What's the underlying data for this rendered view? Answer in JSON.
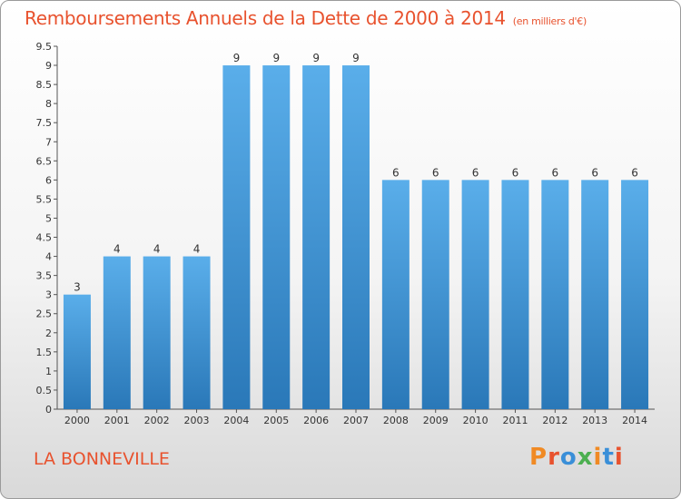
{
  "header": {
    "title": "Remboursements Annuels de la Dette de 2000 à 2014",
    "unit": "(en milliers d'€)"
  },
  "footer": {
    "commune": "LA BONNEVILLE",
    "logo": "Proxiti"
  },
  "colors": {
    "title": "#e8522e",
    "bar_top": "#5aaeea",
    "bar_bottom": "#2a78b8",
    "axis": "#555555",
    "logo_letters": [
      "#f08a24",
      "#e8522e",
      "#3a8fd8",
      "#4caf50",
      "#f08a24",
      "#3a8fd8",
      "#e8522e"
    ]
  },
  "chart_data": {
    "type": "bar",
    "categories": [
      "2000",
      "2001",
      "2002",
      "2003",
      "2004",
      "2005",
      "2006",
      "2007",
      "2008",
      "2009",
      "2010",
      "2011",
      "2012",
      "2013",
      "2014"
    ],
    "values": [
      3,
      4,
      4,
      4,
      9,
      9,
      9,
      9,
      6,
      6,
      6,
      6,
      6,
      6,
      6
    ],
    "data_labels": [
      "3",
      "4",
      "4",
      "4",
      "9",
      "9",
      "9",
      "9",
      "6",
      "6",
      "6",
      "6",
      "6",
      "6",
      "6"
    ],
    "title": "Remboursements Annuels de la Dette de 2000 à 2014",
    "xlabel": "",
    "ylabel": "",
    "ylim": [
      0,
      9.5
    ],
    "y_ticks": [
      "0",
      "0.5",
      "1",
      "1.5",
      "2",
      "2.5",
      "3",
      "3.5",
      "4",
      "4.5",
      "5",
      "5.5",
      "6",
      "6.5",
      "7",
      "7.5",
      "8",
      "8.5",
      "9",
      "9.5"
    ],
    "grid": false
  }
}
